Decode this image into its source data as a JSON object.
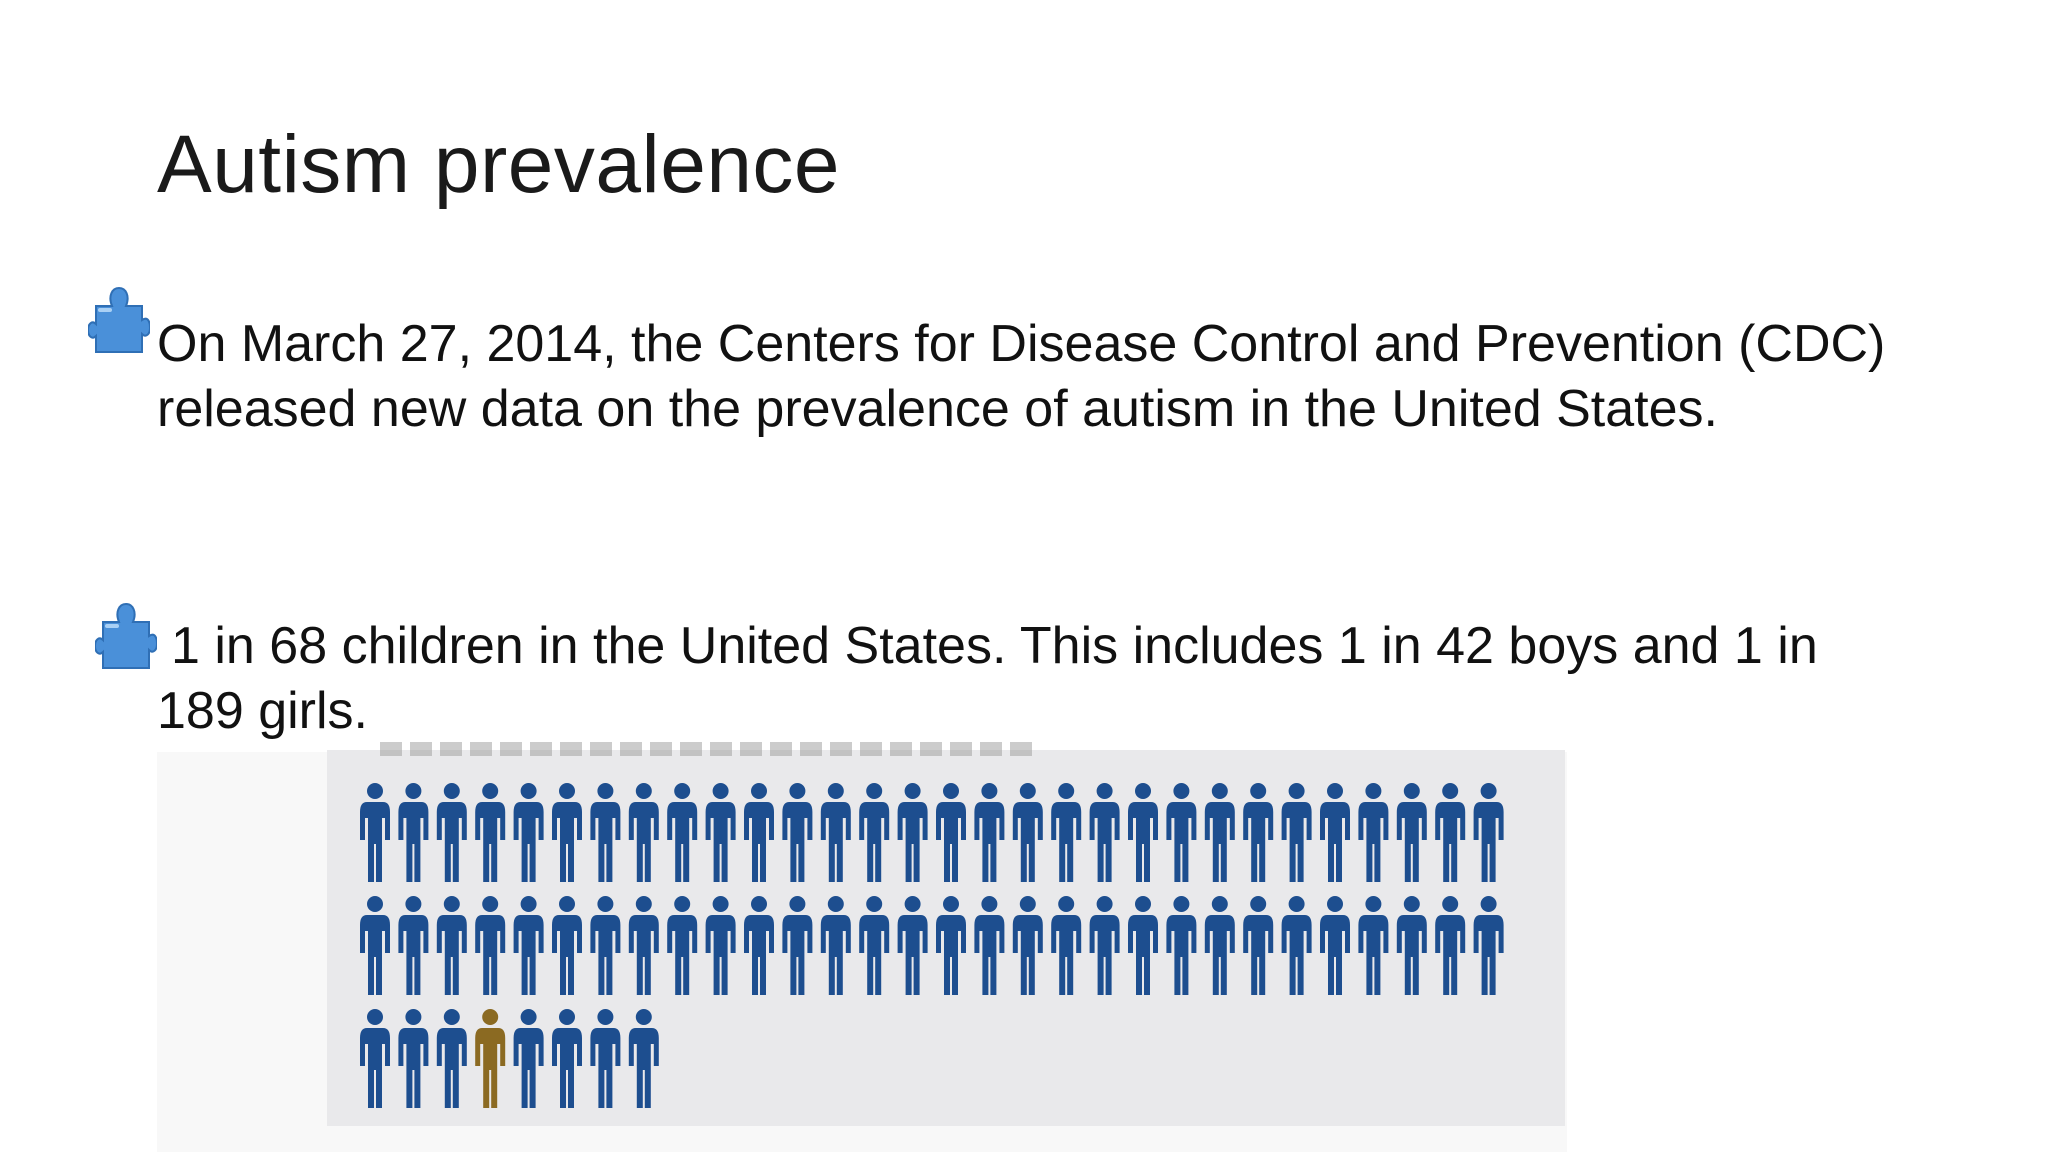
{
  "slide": {
    "title": "Autism prevalence",
    "bullets": [
      {
        "icon": "puzzle-piece-icon",
        "text": "On March 27, 2014, the Centers for Disease Control and Prevention (CDC) released new data on the prevalence of autism in the United States."
      },
      {
        "icon": "puzzle-piece-icon",
        "text": "1 in 68 children in the United States. This includes 1 in 42 boys and 1 in 189 girls."
      }
    ]
  },
  "infographic": {
    "total_figures": 68,
    "highlighted_figures": 1,
    "highlighted_position": 64,
    "colors": {
      "figure": "#1d4e8f",
      "highlight": "#8b6a22",
      "puzzle_icon": "#4a90d9",
      "background": "#e9e9eb"
    }
  }
}
